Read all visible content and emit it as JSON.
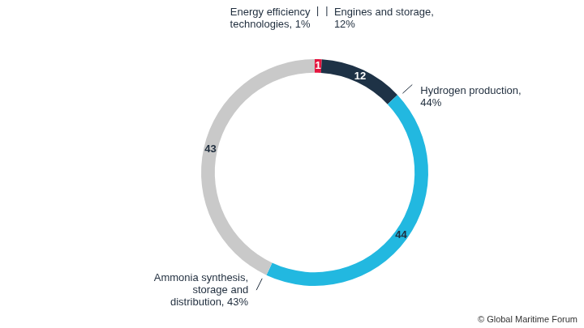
{
  "chart_data": {
    "type": "doughnut",
    "categories": [
      "Energy efficiency technologies, 1%",
      "Engines and storage, 12%",
      "Hydrogen production, 44%",
      "Ammonia synthesis, storage and distribution, 43%"
    ],
    "values": [
      1,
      12,
      44,
      43
    ],
    "colors": [
      "#e5163f",
      "#1e3246",
      "#22b8e0",
      "#c9c9c9"
    ],
    "data_labels": true,
    "legend": false,
    "source": "© Global Maritime Forum"
  }
}
